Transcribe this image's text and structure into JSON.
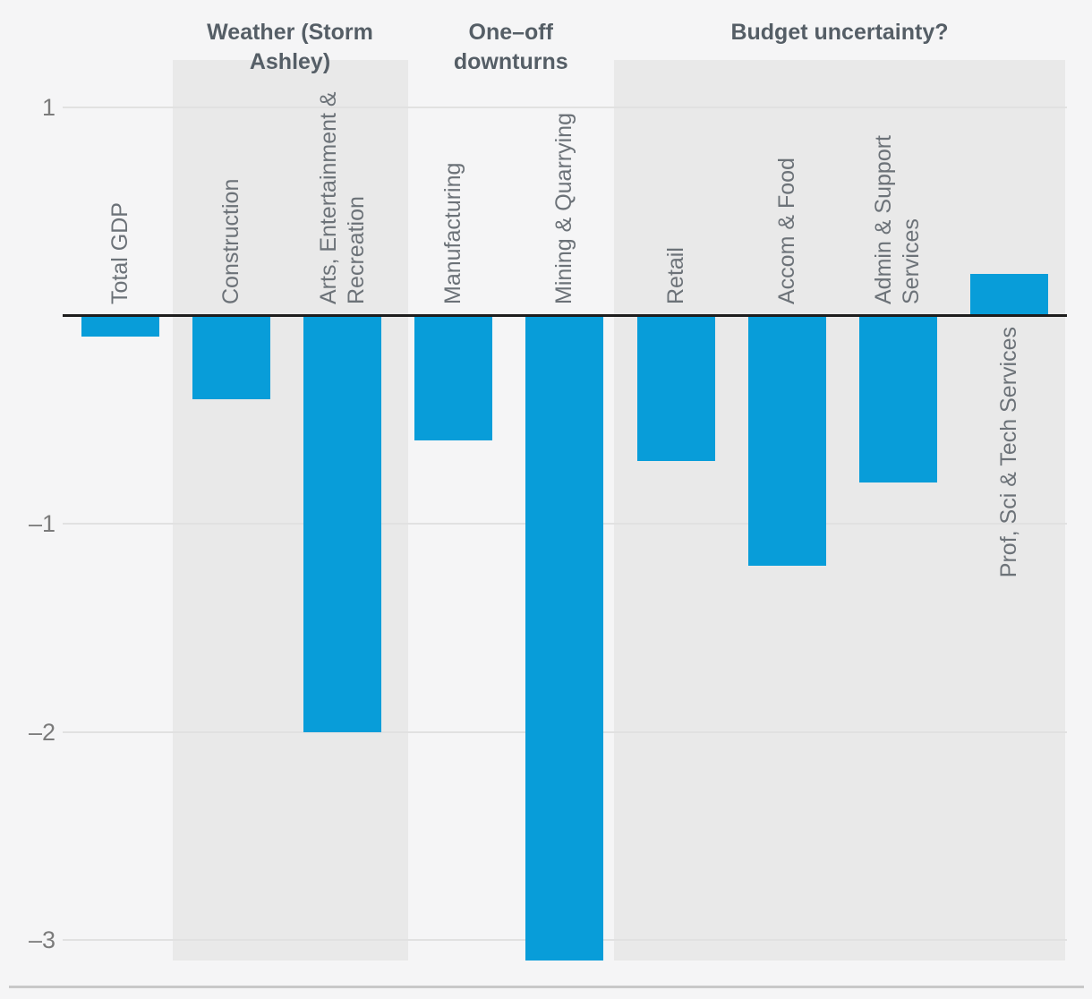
{
  "page": {
    "background_color": "#f5f5f6"
  },
  "chart_data": {
    "type": "bar",
    "title": "",
    "orientation": "vertical",
    "grid": true,
    "legend_position": "none",
    "bar_color": "#089dd9",
    "band_color": "#e9e9e9",
    "zero_line_color": "#1d1d1d",
    "ylim": [
      -3.35,
      1.35
    ],
    "yticks": [
      {
        "value": 1,
        "label": "1"
      },
      {
        "value": -1,
        "label": "–1"
      },
      {
        "value": -2,
        "label": "–2"
      },
      {
        "value": -3,
        "label": "–3"
      }
    ],
    "categories": [
      "Total GDP",
      "Construction",
      "Arts, Entertainment & Recreation",
      "Manufacturing",
      "Mining & Quarrying",
      "Retail",
      "Accom & Food",
      "Admin & Support Services",
      "Prof, Sci & Tech Services"
    ],
    "values": [
      -0.1,
      -0.4,
      -2.0,
      -0.6,
      -3.1,
      -0.7,
      -1.2,
      -0.8,
      0.2
    ],
    "groups": [
      {
        "header_lines": [],
        "shaded": false,
        "bars": [
          {
            "label_lines": [
              "Total GDP"
            ],
            "value": -0.1,
            "label_position": "above"
          }
        ]
      },
      {
        "header": "Weather (Storm Ashley)",
        "header_lines": [
          "Weather (Storm",
          "Ashley)"
        ],
        "shaded": true,
        "bars": [
          {
            "label_lines": [
              "Construction"
            ],
            "value": -0.4,
            "label_position": "above"
          },
          {
            "label_lines": [
              "Arts, Entertainment &",
              "Recreation"
            ],
            "value": -2.0,
            "label_position": "above"
          }
        ]
      },
      {
        "header": "One–off downturns",
        "header_lines": [
          "One–off",
          "downturns"
        ],
        "shaded": false,
        "bars": [
          {
            "label_lines": [
              "Manufacturing"
            ],
            "value": -0.6,
            "label_position": "above"
          },
          {
            "label_lines": [
              "Mining & Quarrying"
            ],
            "value": -3.1,
            "label_position": "above"
          }
        ]
      },
      {
        "header": "Budget uncertainty?",
        "header_lines": [
          "Budget uncertainty?"
        ],
        "shaded": true,
        "bars": [
          {
            "label_lines": [
              "Retail"
            ],
            "value": -0.7,
            "label_position": "above"
          },
          {
            "label_lines": [
              "Accom & Food"
            ],
            "value": -1.2,
            "label_position": "above"
          },
          {
            "label_lines": [
              "Admin & Support",
              "Services"
            ],
            "value": -0.8,
            "label_position": "above"
          },
          {
            "label_lines": [
              "Prof, Sci & Tech Services"
            ],
            "value": 0.2,
            "label_position": "below"
          }
        ]
      }
    ]
  }
}
